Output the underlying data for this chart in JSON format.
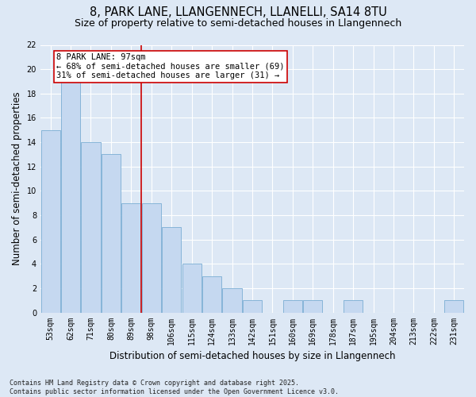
{
  "title_line1": "8, PARK LANE, LLANGENNECH, LLANELLI, SA14 8TU",
  "title_line2": "Size of property relative to semi-detached houses in Llangennech",
  "xlabel": "Distribution of semi-detached houses by size in Llangennech",
  "ylabel": "Number of semi-detached properties",
  "categories": [
    "53sqm",
    "62sqm",
    "71sqm",
    "80sqm",
    "89sqm",
    "98sqm",
    "106sqm",
    "115sqm",
    "124sqm",
    "133sqm",
    "142sqm",
    "151sqm",
    "160sqm",
    "169sqm",
    "178sqm",
    "187sqm",
    "195sqm",
    "204sqm",
    "213sqm",
    "222sqm",
    "231sqm"
  ],
  "values": [
    15,
    19,
    14,
    13,
    9,
    9,
    7,
    4,
    3,
    2,
    1,
    0,
    1,
    1,
    0,
    1,
    0,
    0,
    0,
    0,
    1
  ],
  "bar_color": "#c5d8f0",
  "bar_edge_color": "#7aadd4",
  "vline_x_idx": 5,
  "vline_color": "#cc0000",
  "annotation_text": "8 PARK LANE: 97sqm\n← 68% of semi-detached houses are smaller (69)\n31% of semi-detached houses are larger (31) →",
  "annotation_box_color": "#ffffff",
  "annotation_box_edge_color": "#cc0000",
  "ylim": [
    0,
    22
  ],
  "yticks": [
    0,
    2,
    4,
    6,
    8,
    10,
    12,
    14,
    16,
    18,
    20,
    22
  ],
  "background_color": "#dde8f5",
  "plot_background_color": "#dde8f5",
  "grid_color": "#ffffff",
  "footnote": "Contains HM Land Registry data © Crown copyright and database right 2025.\nContains public sector information licensed under the Open Government Licence v3.0.",
  "title_fontsize": 10.5,
  "subtitle_fontsize": 9,
  "axis_label_fontsize": 8.5,
  "tick_fontsize": 7,
  "annotation_fontsize": 7.5,
  "footnote_fontsize": 6
}
